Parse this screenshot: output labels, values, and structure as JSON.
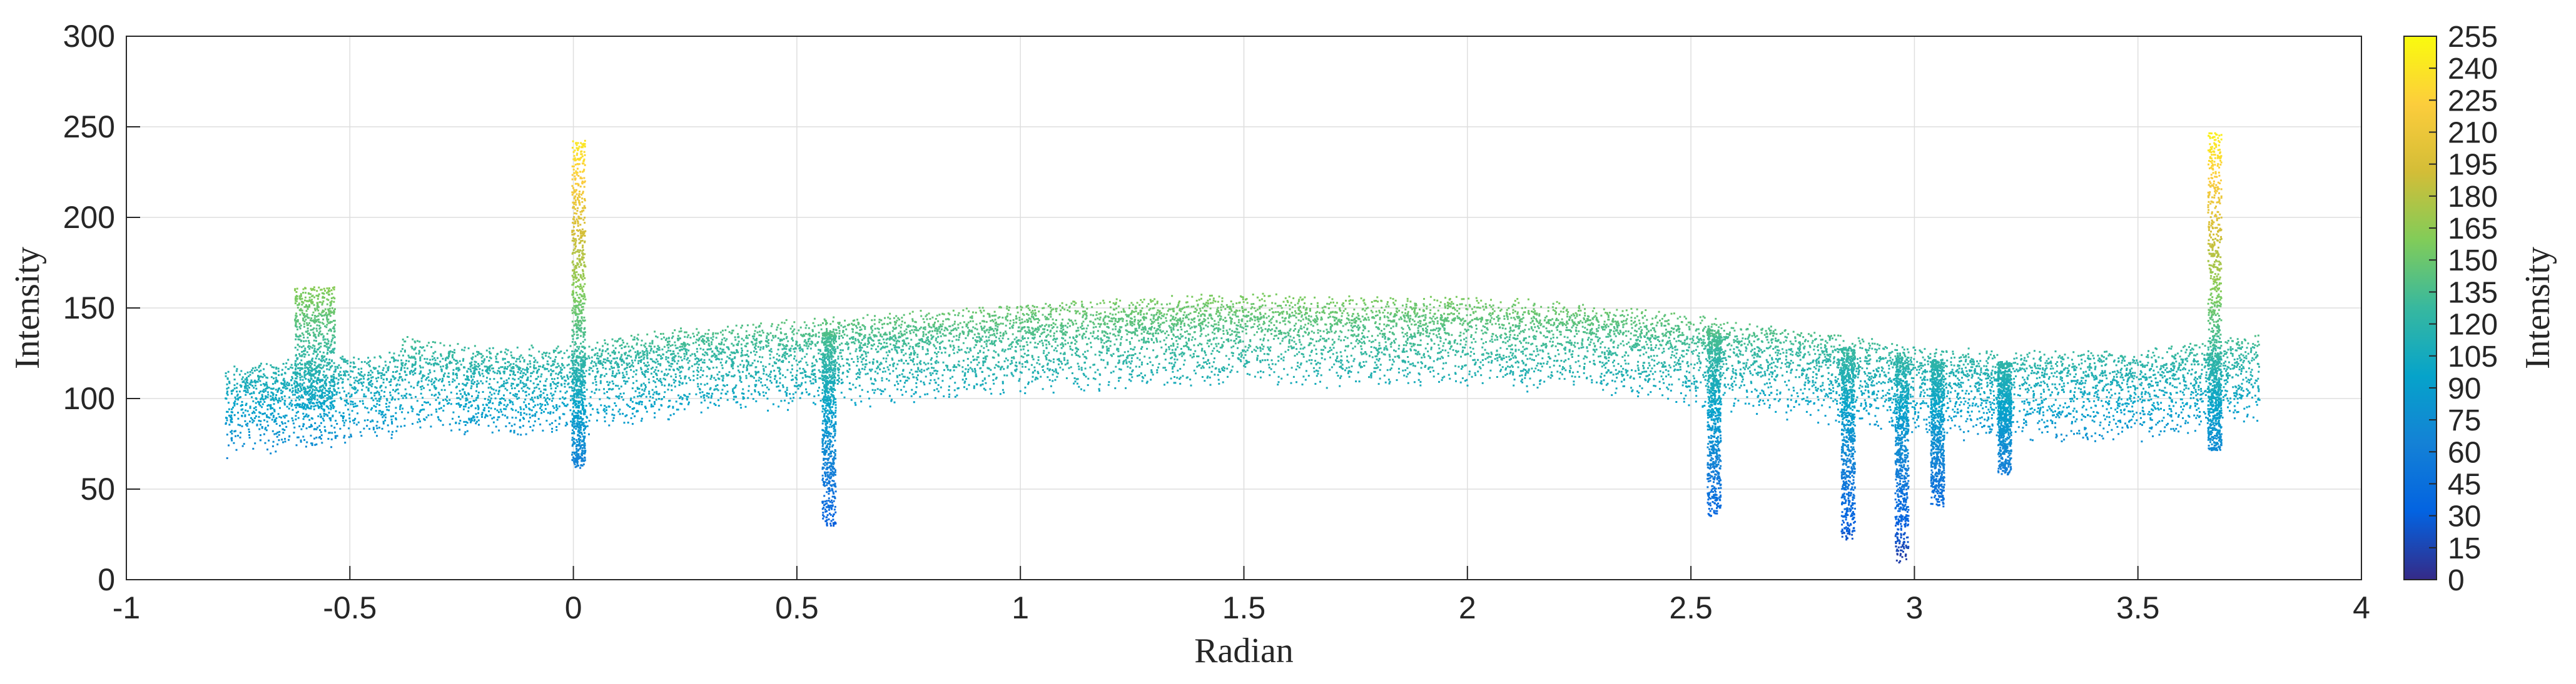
{
  "chart_data": {
    "type": "scatter",
    "title": "",
    "xlabel": "Radian",
    "ylabel": "Intensity",
    "xlim": [
      -1,
      4
    ],
    "ylim": [
      0,
      300
    ],
    "x_ticks": [
      "-1",
      "-0.5",
      "0",
      "0.5",
      "1",
      "1.5",
      "2",
      "2.5",
      "3",
      "3.5",
      "4"
    ],
    "y_ticks": [
      "0",
      "50",
      "100",
      "150",
      "200",
      "250",
      "300"
    ],
    "grid": true,
    "colormap": "parula",
    "colorbar": {
      "label": "Intensity",
      "range": [
        0,
        255
      ],
      "ticks": [
        "0",
        "15",
        "30",
        "45",
        "60",
        "75",
        "90",
        "105",
        "120",
        "135",
        "150",
        "165",
        "180",
        "195",
        "210",
        "225",
        "240",
        "255"
      ]
    },
    "x_range_observed": [
      -0.78,
      3.77
    ],
    "baseline_profile": [
      [
        -0.78,
        112
      ],
      [
        -0.6,
        116
      ],
      [
        -0.4,
        120
      ],
      [
        -0.38,
        128
      ],
      [
        -0.2,
        122
      ],
      [
        0.0,
        124
      ],
      [
        0.2,
        132
      ],
      [
        0.5,
        138
      ],
      [
        0.8,
        143
      ],
      [
        1.0,
        146
      ],
      [
        1.25,
        150
      ],
      [
        1.5,
        152
      ],
      [
        1.75,
        150
      ],
      [
        2.0,
        150
      ],
      [
        2.25,
        147
      ],
      [
        2.5,
        140
      ],
      [
        2.75,
        132
      ],
      [
        3.0,
        123
      ],
      [
        3.25,
        120
      ],
      [
        3.5,
        120
      ],
      [
        3.77,
        130
      ]
    ],
    "notable_features": [
      {
        "x": 0.01,
        "y_max": 243,
        "y_min": 62,
        "kind": "spike"
      },
      {
        "x": 3.67,
        "y_max": 247,
        "y_min": 72,
        "kind": "spike"
      },
      {
        "x": 0.57,
        "y_min": 30,
        "kind": "dip"
      },
      {
        "x": 2.55,
        "y_min": 35,
        "kind": "dip"
      },
      {
        "x": 2.85,
        "y_min": 22,
        "kind": "dip"
      },
      {
        "x": 2.97,
        "y_min": 10,
        "kind": "dip"
      },
      {
        "x": 3.05,
        "y_min": 40,
        "kind": "dip"
      },
      {
        "x": 3.2,
        "y_min": 58,
        "kind": "dip"
      },
      {
        "x": -0.58,
        "y_max": 162,
        "y_min": 95,
        "kind": "cluster"
      }
    ]
  }
}
